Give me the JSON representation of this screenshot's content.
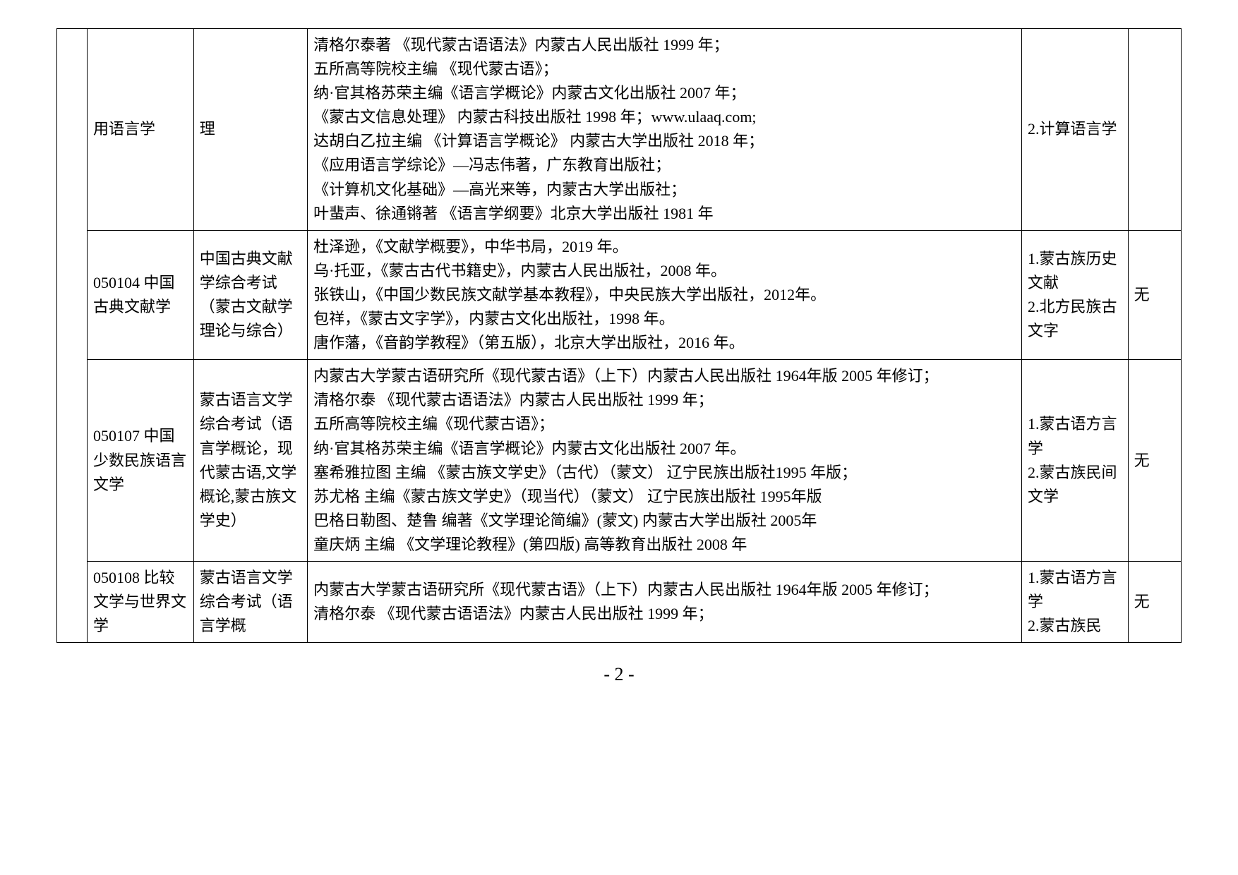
{
  "table": {
    "rows": [
      {
        "c0": "",
        "c1": "用语言学",
        "c2": "理",
        "c3": "清格尔泰著 《现代蒙古语语法》内蒙古人民出版社 1999 年；\n五所高等院校主编 《现代蒙古语》；\n纳·官其格苏荣主编《语言学概论》内蒙古文化出版社 2007 年；\n《蒙古文信息处理》 内蒙古科技出版社 1998 年；www.ulaaq.com;\n达胡白乙拉主编 《计算语言学概论》 内蒙古大学出版社 2018 年；\n《应用语言学综论》—冯志伟著，广东教育出版社；\n《计算机文化基础》—高光来等，内蒙古大学出版社；\n叶蜚声、徐通锵著 《语言学纲要》北京大学出版社 1981 年",
        "c4": "2.计算语言学",
        "c5": ""
      },
      {
        "c0": "",
        "c1": "050104 中国古典文献学",
        "c2": "中国古典文献学综合考试（蒙古文献学理论与综合）",
        "c3": "杜泽逊，《文献学概要》，中华书局，2019 年。\n乌·托亚，《蒙古古代书籍史》，内蒙古人民出版社，2008 年。\n张铁山，《中国少数民族文献学基本教程》，中央民族大学出版社，2012年。\n包祥，《蒙古文字学》，内蒙古文化出版社，1998 年。\n唐作藩，《音韵学教程》（第五版），北京大学出版社，2016 年。",
        "c4": "1.蒙古族历史文献\n2.北方民族古文字",
        "c5": "无"
      },
      {
        "c0": "",
        "c1": "050107 中国少数民族语言文学",
        "c2": "蒙古语言文学综合考试（语言学概论，现代蒙古语,文学概论,蒙古族文学史）",
        "c3": "内蒙古大学蒙古语研究所《现代蒙古语》（上下）内蒙古人民出版社 1964年版 2005 年修订；\n清格尔泰 《现代蒙古语语法》内蒙古人民出版社 1999 年；\n五所高等院校主编《现代蒙古语》；\n纳·官其格苏荣主编《语言学概论》内蒙古文化出版社 2007 年。\n塞希雅拉图 主编 《蒙古族文学史》（古代）（蒙文） 辽宁民族出版社1995 年版；\n苏尤格 主编《蒙古族文学史》（现当代）（蒙文） 辽宁民族出版社 1995年版\n巴格日勒图、楚鲁 编著《文学理论简编》(蒙文) 内蒙古大学出版社 2005年\n童庆炳 主编 《文学理论教程》(第四版)  高等教育出版社 2008 年",
        "c4": "1.蒙古语方言学\n2.蒙古族民间文学",
        "c5": "无"
      },
      {
        "c0": "",
        "c1": "050108 比较文学与世界文学",
        "c2": "蒙古语言文学综合考试（语言学概",
        "c3": "内蒙古大学蒙古语研究所《现代蒙古语》（上下）内蒙古人民出版社 1964年版 2005 年修订；\n清格尔泰 《现代蒙古语语法》内蒙古人民出版社 1999 年；",
        "c4": "1.蒙古语方言学\n2.蒙古族民",
        "c5": "无"
      }
    ]
  },
  "footer": "- 2 -"
}
